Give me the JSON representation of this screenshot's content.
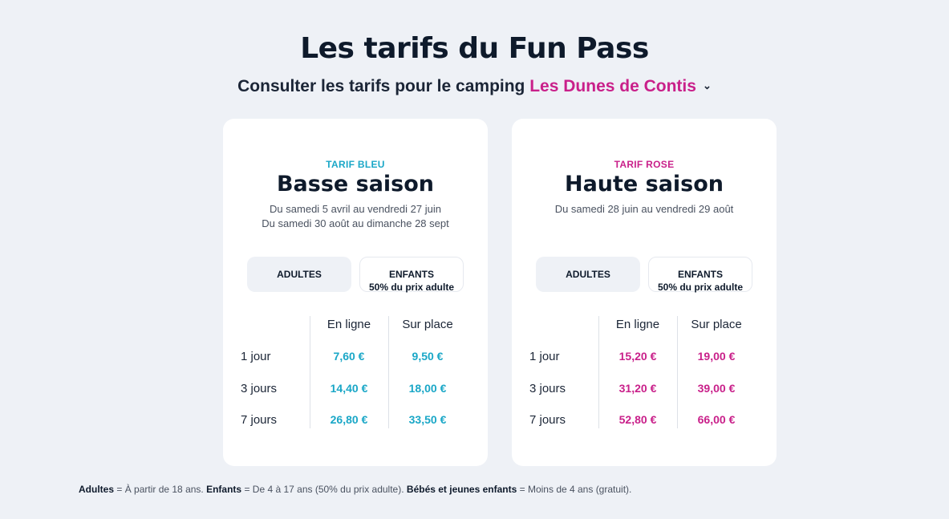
{
  "header": {
    "title": "Les tarifs du Fun Pass",
    "subtitle_prefix": "Consulter les tarifs pour le camping",
    "camping_selected": "Les Dunes de Contis",
    "chevron_glyph": "⌄"
  },
  "colors": {
    "blue_accent": "#1aa7c7",
    "pink_accent": "#c9208a",
    "background": "#eef1f6"
  },
  "cards": [
    {
      "tier": "TARIF BLEU",
      "season": "Basse saison",
      "dates": [
        "Du samedi 5 avril au vendredi 27 juin",
        "Du samedi 30 août au dimanche 28 sept"
      ],
      "tab_adults": "ADULTES",
      "tab_children": "ENFANTS",
      "tab_children_note": "50% du prix adulte",
      "col_online": "En ligne",
      "col_onsite": "Sur place",
      "rows": [
        {
          "label": "1 jour",
          "online": "7,60 €",
          "onsite": "9,50 €"
        },
        {
          "label": "3 jours",
          "online": "14,40 €",
          "onsite": "18,00 €"
        },
        {
          "label": "7 jours",
          "online": "26,80 €",
          "onsite": "33,50 €"
        }
      ]
    },
    {
      "tier": "TARIF ROSE",
      "season": "Haute saison",
      "dates": [
        "Du samedi 28 juin au vendredi 29 août"
      ],
      "tab_adults": "ADULTES",
      "tab_children": "ENFANTS",
      "tab_children_note": "50% du prix adulte",
      "col_online": "En ligne",
      "col_onsite": "Sur place",
      "rows": [
        {
          "label": "1 jour",
          "online": "15,20 €",
          "onsite": "19,00 €"
        },
        {
          "label": "3 jours",
          "online": "31,20 €",
          "onsite": "39,00 €"
        },
        {
          "label": "7 jours",
          "online": "52,80 €",
          "onsite": "66,00 €"
        }
      ]
    }
  ],
  "footnote": {
    "adults_term": "Adultes",
    "adults_def": " = À partir de 18 ans. ",
    "children_term": "Enfants",
    "children_def": " = De 4 à 17 ans (50% du prix adulte). ",
    "babies_term": "Bébés et jeunes enfants",
    "babies_def": " = Moins de 4 ans (gratuit)."
  }
}
